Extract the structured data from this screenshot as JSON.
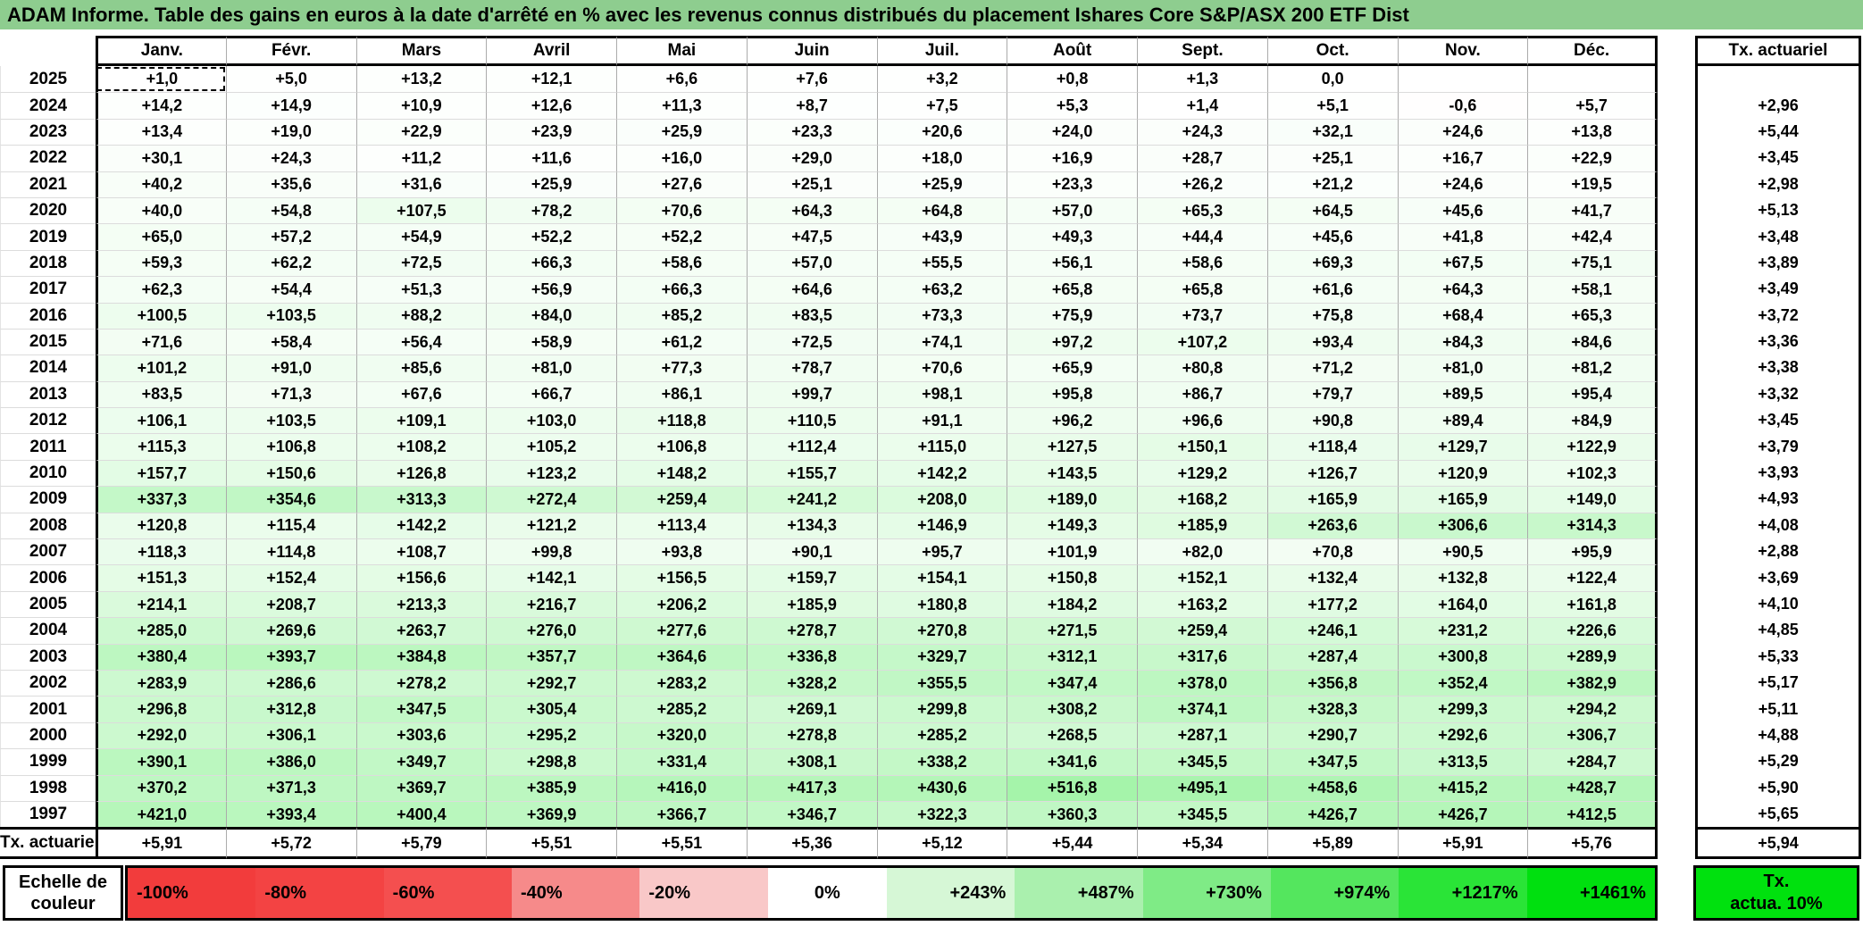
{
  "title": "ADAM Informe. Table des gains en euros à la date d'arrêté en % avec les revenus connus distribués du placement Ishares Core S&P/ASX 200 ETF Dist",
  "title_bg": "#8ecd8f",
  "table": {
    "months": [
      "Janv.",
      "Févr.",
      "Mars",
      "Avril",
      "Mai",
      "Juin",
      "Juil.",
      "Août",
      "Sept.",
      "Oct.",
      "Nov.",
      "Déc."
    ],
    "right_header": "Tx. actuariel",
    "rows": [
      {
        "year": "2025",
        "values": [
          "+1,0",
          "+5,0",
          "+13,2",
          "+12,1",
          "+6,6",
          "+7,6",
          "+3,2",
          "+0,8",
          "+1,3",
          "0,0",
          "",
          ""
        ],
        "tx": ""
      },
      {
        "year": "2024",
        "values": [
          "+14,2",
          "+14,9",
          "+10,9",
          "+12,6",
          "+11,3",
          "+8,7",
          "+7,5",
          "+5,3",
          "+1,4",
          "+5,1",
          "-0,6",
          "+5,7"
        ],
        "tx": "+2,96"
      },
      {
        "year": "2023",
        "values": [
          "+13,4",
          "+19,0",
          "+22,9",
          "+23,9",
          "+25,9",
          "+23,3",
          "+20,6",
          "+24,0",
          "+24,3",
          "+32,1",
          "+24,6",
          "+13,8"
        ],
        "tx": "+5,44"
      },
      {
        "year": "2022",
        "values": [
          "+30,1",
          "+24,3",
          "+11,2",
          "+11,6",
          "+16,0",
          "+29,0",
          "+18,0",
          "+16,9",
          "+28,7",
          "+25,1",
          "+16,7",
          "+22,9"
        ],
        "tx": "+3,45"
      },
      {
        "year": "2021",
        "values": [
          "+40,2",
          "+35,6",
          "+31,6",
          "+25,9",
          "+27,6",
          "+25,1",
          "+25,9",
          "+23,3",
          "+26,2",
          "+21,2",
          "+24,6",
          "+19,5"
        ],
        "tx": "+2,98"
      },
      {
        "year": "2020",
        "values": [
          "+40,0",
          "+54,8",
          "+107,5",
          "+78,2",
          "+70,6",
          "+64,3",
          "+64,8",
          "+57,0",
          "+65,3",
          "+64,5",
          "+45,6",
          "+41,7"
        ],
        "tx": "+5,13"
      },
      {
        "year": "2019",
        "values": [
          "+65,0",
          "+57,2",
          "+54,9",
          "+52,2",
          "+52,2",
          "+47,5",
          "+43,9",
          "+49,3",
          "+44,4",
          "+45,6",
          "+41,8",
          "+42,4"
        ],
        "tx": "+3,48"
      },
      {
        "year": "2018",
        "values": [
          "+59,3",
          "+62,2",
          "+72,5",
          "+66,3",
          "+58,6",
          "+57,0",
          "+55,5",
          "+56,1",
          "+58,6",
          "+69,3",
          "+67,5",
          "+75,1"
        ],
        "tx": "+3,89"
      },
      {
        "year": "2017",
        "values": [
          "+62,3",
          "+54,4",
          "+51,3",
          "+56,9",
          "+66,3",
          "+64,6",
          "+63,2",
          "+65,8",
          "+65,8",
          "+61,6",
          "+64,3",
          "+58,1"
        ],
        "tx": "+3,49"
      },
      {
        "year": "2016",
        "values": [
          "+100,5",
          "+103,5",
          "+88,2",
          "+84,0",
          "+85,2",
          "+83,5",
          "+73,3",
          "+75,9",
          "+73,7",
          "+75,8",
          "+68,4",
          "+65,3"
        ],
        "tx": "+3,72"
      },
      {
        "year": "2015",
        "values": [
          "+71,6",
          "+58,4",
          "+56,4",
          "+58,9",
          "+61,2",
          "+72,5",
          "+74,1",
          "+97,2",
          "+107,2",
          "+93,4",
          "+84,3",
          "+84,6"
        ],
        "tx": "+3,36"
      },
      {
        "year": "2014",
        "values": [
          "+101,2",
          "+91,0",
          "+85,6",
          "+81,0",
          "+77,3",
          "+78,7",
          "+70,6",
          "+65,9",
          "+80,8",
          "+71,2",
          "+81,0",
          "+81,2"
        ],
        "tx": "+3,38"
      },
      {
        "year": "2013",
        "values": [
          "+83,5",
          "+71,3",
          "+67,6",
          "+66,7",
          "+86,1",
          "+99,7",
          "+98,1",
          "+95,8",
          "+86,7",
          "+79,7",
          "+89,5",
          "+95,4"
        ],
        "tx": "+3,32"
      },
      {
        "year": "2012",
        "values": [
          "+106,1",
          "+103,5",
          "+109,1",
          "+103,0",
          "+118,8",
          "+110,5",
          "+91,1",
          "+96,2",
          "+96,6",
          "+90,8",
          "+89,4",
          "+84,9"
        ],
        "tx": "+3,45"
      },
      {
        "year": "2011",
        "values": [
          "+115,3",
          "+106,8",
          "+108,2",
          "+105,2",
          "+106,8",
          "+112,4",
          "+115,0",
          "+127,5",
          "+150,1",
          "+118,4",
          "+129,7",
          "+122,9"
        ],
        "tx": "+3,79"
      },
      {
        "year": "2010",
        "values": [
          "+157,7",
          "+150,6",
          "+126,8",
          "+123,2",
          "+148,2",
          "+155,7",
          "+142,2",
          "+143,5",
          "+129,2",
          "+126,7",
          "+120,9",
          "+102,3"
        ],
        "tx": "+3,93"
      },
      {
        "year": "2009",
        "values": [
          "+337,3",
          "+354,6",
          "+313,3",
          "+272,4",
          "+259,4",
          "+241,2",
          "+208,0",
          "+189,0",
          "+168,2",
          "+165,9",
          "+165,9",
          "+149,0"
        ],
        "tx": "+4,93"
      },
      {
        "year": "2008",
        "values": [
          "+120,8",
          "+115,4",
          "+142,2",
          "+121,2",
          "+113,4",
          "+134,3",
          "+146,9",
          "+149,3",
          "+185,9",
          "+263,6",
          "+306,6",
          "+314,3"
        ],
        "tx": "+4,08"
      },
      {
        "year": "2007",
        "values": [
          "+118,3",
          "+114,8",
          "+108,7",
          "+99,8",
          "+93,8",
          "+90,1",
          "+95,7",
          "+101,9",
          "+82,0",
          "+70,8",
          "+90,5",
          "+95,9"
        ],
        "tx": "+2,88"
      },
      {
        "year": "2006",
        "values": [
          "+151,3",
          "+152,4",
          "+156,6",
          "+142,1",
          "+156,5",
          "+159,7",
          "+154,1",
          "+150,8",
          "+152,1",
          "+132,4",
          "+132,8",
          "+122,4"
        ],
        "tx": "+3,69"
      },
      {
        "year": "2005",
        "values": [
          "+214,1",
          "+208,7",
          "+213,3",
          "+216,7",
          "+206,2",
          "+185,9",
          "+180,8",
          "+184,2",
          "+163,2",
          "+177,2",
          "+164,0",
          "+161,8"
        ],
        "tx": "+4,10"
      },
      {
        "year": "2004",
        "values": [
          "+285,0",
          "+269,6",
          "+263,7",
          "+276,0",
          "+277,6",
          "+278,7",
          "+270,8",
          "+271,5",
          "+259,4",
          "+246,1",
          "+231,2",
          "+226,6"
        ],
        "tx": "+4,85"
      },
      {
        "year": "2003",
        "values": [
          "+380,4",
          "+393,7",
          "+384,8",
          "+357,7",
          "+364,6",
          "+336,8",
          "+329,7",
          "+312,1",
          "+317,6",
          "+287,4",
          "+300,8",
          "+289,9"
        ],
        "tx": "+5,33"
      },
      {
        "year": "2002",
        "values": [
          "+283,9",
          "+286,6",
          "+278,2",
          "+292,7",
          "+283,2",
          "+328,2",
          "+355,5",
          "+347,4",
          "+378,0",
          "+356,8",
          "+352,4",
          "+382,9"
        ],
        "tx": "+5,17"
      },
      {
        "year": "2001",
        "values": [
          "+296,8",
          "+312,8",
          "+347,5",
          "+305,4",
          "+285,2",
          "+269,1",
          "+299,8",
          "+308,2",
          "+374,1",
          "+328,3",
          "+299,3",
          "+294,2"
        ],
        "tx": "+5,11"
      },
      {
        "year": "2000",
        "values": [
          "+292,0",
          "+306,1",
          "+303,6",
          "+295,2",
          "+320,0",
          "+278,8",
          "+285,2",
          "+268,5",
          "+287,1",
          "+290,7",
          "+292,6",
          "+306,7"
        ],
        "tx": "+4,88"
      },
      {
        "year": "1999",
        "values": [
          "+390,1",
          "+386,0",
          "+349,7",
          "+298,8",
          "+331,4",
          "+308,1",
          "+338,2",
          "+341,6",
          "+345,5",
          "+347,5",
          "+313,5",
          "+284,7"
        ],
        "tx": "+5,29"
      },
      {
        "year": "1998",
        "values": [
          "+370,2",
          "+371,3",
          "+369,7",
          "+385,9",
          "+416,0",
          "+417,3",
          "+430,6",
          "+516,8",
          "+495,1",
          "+458,6",
          "+415,2",
          "+428,7"
        ],
        "tx": "+5,90"
      },
      {
        "year": "1997",
        "values": [
          "+421,0",
          "+393,4",
          "+400,4",
          "+369,9",
          "+366,7",
          "+346,7",
          "+322,3",
          "+360,3",
          "+345,5",
          "+426,7",
          "+426,7",
          "+412,5"
        ],
        "tx": "+5,65"
      }
    ],
    "footer": {
      "label": "Tx. actuariel",
      "values": [
        "+5,91",
        "+5,72",
        "+5,79",
        "+5,51",
        "+5,51",
        "+5,36",
        "+5,12",
        "+5,44",
        "+5,34",
        "+5,89",
        "+5,91",
        "+5,76"
      ],
      "tx": "+5,94"
    }
  },
  "color_scale": {
    "positive_max": 1461,
    "negative_max": -100,
    "positive_end_color": "#00e00f",
    "negative_end_color": "#f23c3c",
    "zero_color": "#ffffff"
  },
  "legend": {
    "label_line1": "Echelle de",
    "label_line2": "couleur",
    "items": [
      {
        "label": "-100%",
        "color": "#f23c3c",
        "align": "left"
      },
      {
        "label": "-80%",
        "color": "#f34343",
        "align": "left"
      },
      {
        "label": "-60%",
        "color": "#f44f4f",
        "align": "left"
      },
      {
        "label": "-40%",
        "color": "#f68a8a",
        "align": "left"
      },
      {
        "label": "-20%",
        "color": "#f9c8c8",
        "align": "left"
      },
      {
        "label": "0%",
        "color": "#ffffff",
        "align": "center"
      },
      {
        "label": "+243%",
        "color": "#d6f7d6",
        "align": "right"
      },
      {
        "label": "+487%",
        "color": "#aaf0ae",
        "align": "right"
      },
      {
        "label": "+730%",
        "color": "#7feb86",
        "align": "right"
      },
      {
        "label": "+974%",
        "color": "#54e65e",
        "align": "right"
      },
      {
        "label": "+1217%",
        "color": "#2ae437",
        "align": "right"
      },
      {
        "label": "+1461%",
        "color": "#00e00f",
        "align": "right"
      }
    ],
    "tx_line1": "Tx.",
    "tx_line2": "actua. 10%",
    "tx_color": "#00e10e"
  }
}
